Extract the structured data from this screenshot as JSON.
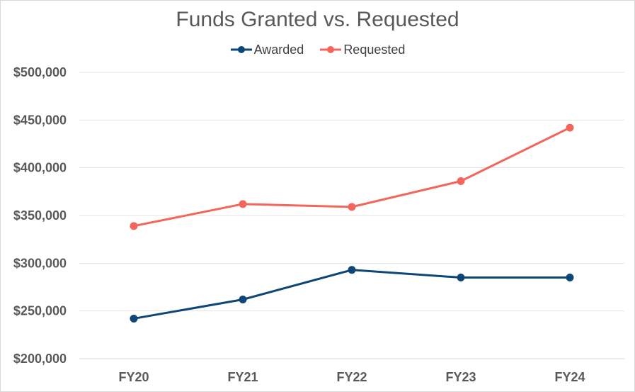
{
  "chart_data": {
    "type": "line",
    "title": "Funds Granted vs. Requested",
    "xlabel": "",
    "ylabel": "",
    "categories": [
      "FY20",
      "FY21",
      "FY22",
      "FY23",
      "FY24"
    ],
    "series": [
      {
        "name": "Awarded",
        "color": "#0e4677",
        "values": [
          242000,
          262000,
          293000,
          285000,
          285000
        ]
      },
      {
        "name": "Requested",
        "color": "#f2665b",
        "values": [
          339000,
          362000,
          359000,
          386000,
          442000
        ]
      }
    ],
    "ylim": [
      200000,
      500000
    ],
    "yticks": [
      200000,
      250000,
      300000,
      350000,
      400000,
      450000,
      500000
    ],
    "ytick_labels": [
      "$200,000",
      "$250,000",
      "$300,000",
      "$350,000",
      "$400,000",
      "$450,000",
      "$500,000"
    ],
    "grid": true,
    "legend_position": "top-center"
  }
}
